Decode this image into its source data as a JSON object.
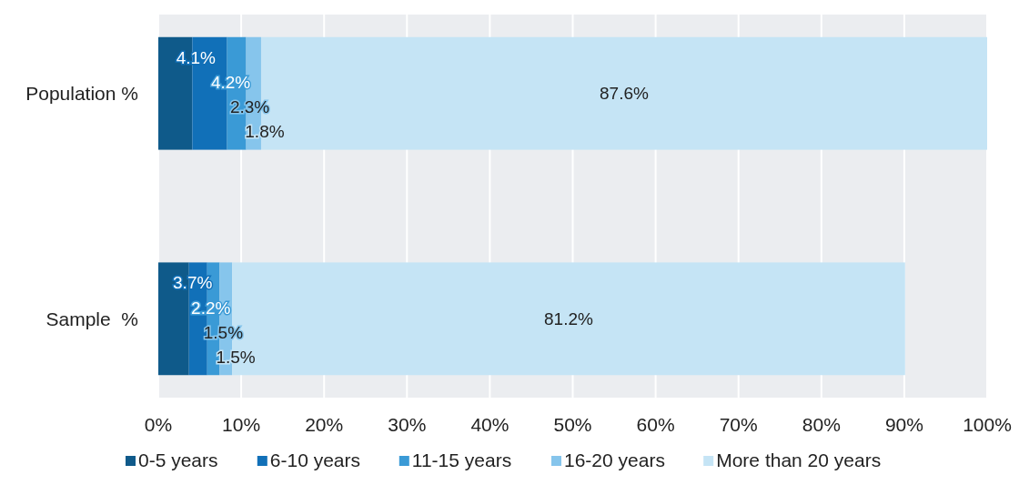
{
  "chart_data": {
    "type": "bar",
    "orientation": "horizontal",
    "stacked": true,
    "categories": [
      "Population %",
      "Sample  %"
    ],
    "series": [
      {
        "name": "0-5 years",
        "color": "#0f5a8a",
        "values": [
          4.1,
          3.7
        ],
        "value_labels": [
          "4.1%",
          "3.7%"
        ]
      },
      {
        "name": "6-10 years",
        "color": "#1170b8",
        "values": [
          4.2,
          2.2
        ],
        "value_labels": [
          "4.2%",
          "2.2%"
        ]
      },
      {
        "name": "11-15 years",
        "color": "#3a9ad6",
        "values": [
          2.3,
          1.5
        ],
        "value_labels": [
          "2.3%",
          "1.5%"
        ]
      },
      {
        "name": "16-20 years",
        "color": "#86c5ec",
        "values": [
          1.8,
          1.5
        ],
        "value_labels": [
          "1.8%",
          "1.5%"
        ]
      },
      {
        "name": "More than 20 years",
        "color": "#c5e4f5",
        "values": [
          87.6,
          81.2
        ],
        "value_labels": [
          "87.6%",
          "81.2%"
        ]
      }
    ],
    "xlim": [
      0,
      100
    ],
    "xticks": [
      {
        "value": 0,
        "label": "0%"
      },
      {
        "value": 10,
        "label": "10%"
      },
      {
        "value": 20,
        "label": "20%"
      },
      {
        "value": 30,
        "label": "30%"
      },
      {
        "value": 40,
        "label": "40%"
      },
      {
        "value": 50,
        "label": "50%"
      },
      {
        "value": 60,
        "label": "60%"
      },
      {
        "value": 70,
        "label": "70%"
      },
      {
        "value": 80,
        "label": "80%"
      },
      {
        "value": 90,
        "label": "90%"
      },
      {
        "value": 100,
        "label": "100%"
      }
    ],
    "grid": "x",
    "legend": "bottom"
  }
}
